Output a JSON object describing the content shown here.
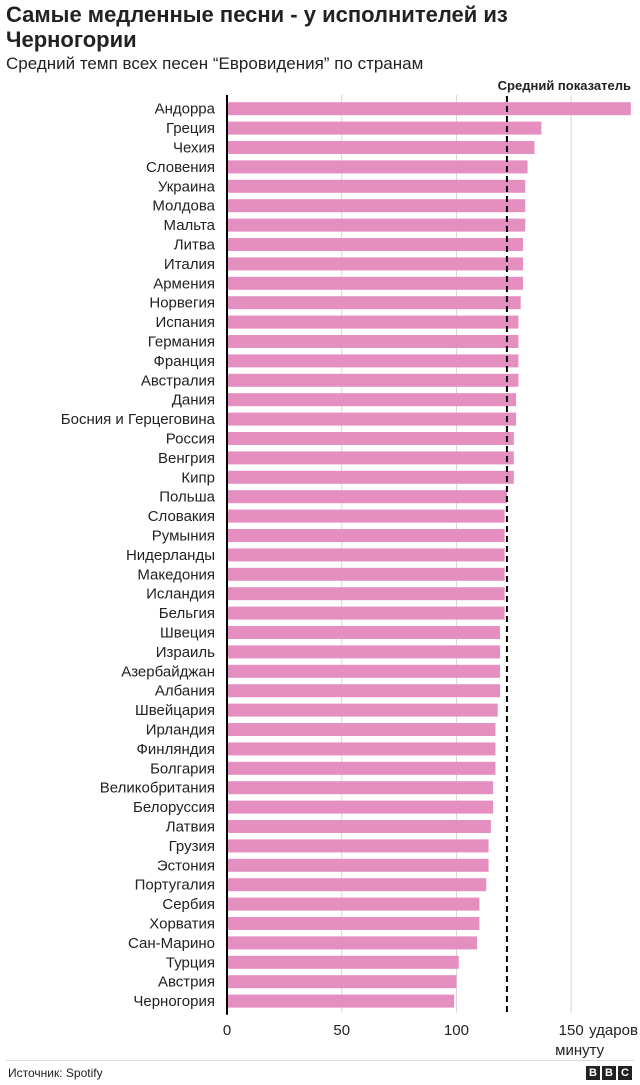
{
  "title": "Самые медленные песни - у исполнителей из Черногории",
  "subtitle": "Средний темп всех песен “Евровидения” по странам",
  "source": "Источник: Spotify",
  "logo": {
    "letters": [
      "B",
      "B",
      "C"
    ]
  },
  "colors": {
    "bar": "#e48fbf",
    "grid": "#d6d6d6",
    "axis": "#000000",
    "text": "#222222"
  },
  "chart_data": {
    "type": "bar",
    "orientation": "horizontal",
    "title": "Самые медленные песни - у исполнителей из Черногории",
    "subtitle": "Средний темп всех песен “Евровидения” по странам",
    "xlabel": "ударов в минуту",
    "ylabel": "",
    "xlim": [
      0,
      180
    ],
    "xticks": [
      0,
      50,
      100,
      150
    ],
    "xtick_labels": [
      "0",
      "50",
      "100",
      "150"
    ],
    "unit_label": "ударов в минуту",
    "grid": true,
    "categories": [
      "Андорра",
      "Греция",
      "Чехия",
      "Словения",
      "Украина",
      "Молдова",
      "Мальта",
      "Литва",
      "Италия",
      "Армения",
      "Норвегия",
      "Испания",
      "Германия",
      "Франция",
      "Австралия",
      "Дания",
      "Босния и Герцеговина",
      "Россия",
      "Венгрия",
      "Кипр",
      "Польша",
      "Словакия",
      "Румыния",
      "Нидерланды",
      "Македония",
      "Исландия",
      "Бельгия",
      "Швеция",
      "Израиль",
      "Азербайджан",
      "Албания",
      "Швейцария",
      "Ирландия",
      "Финляндия",
      "Болгария",
      "Великобритания",
      "Белоруссия",
      "Латвия",
      "Грузия",
      "Эстония",
      "Португалия",
      "Сербия",
      "Хорватия",
      "Сан-Марино",
      "Турция",
      "Австрия",
      "Черногория"
    ],
    "values": [
      176,
      137,
      134,
      131,
      130,
      130,
      130,
      129,
      129,
      129,
      128,
      127,
      127,
      127,
      127,
      126,
      126,
      125,
      125,
      125,
      122,
      121,
      121,
      121,
      121,
      121,
      121,
      119,
      119,
      119,
      119,
      118,
      117,
      117,
      117,
      116,
      116,
      115,
      114,
      114,
      113,
      110,
      110,
      109,
      101,
      100,
      99
    ],
    "reference_line": {
      "label": "Средний показатель",
      "value": 122
    }
  }
}
